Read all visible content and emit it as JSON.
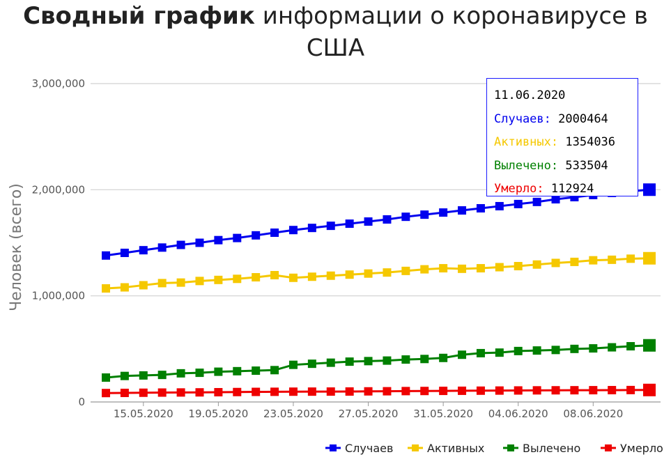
{
  "title": {
    "bold": "Сводный график",
    "rest": "информации о коронавирусе в США"
  },
  "chart_data": {
    "type": "line",
    "title": "Сводный график информации о коронавирусе в США",
    "xlabel": "",
    "ylabel": "Человек (всего)",
    "x": [
      "13.05.2020",
      "14.05.2020",
      "15.05.2020",
      "16.05.2020",
      "17.05.2020",
      "18.05.2020",
      "19.05.2020",
      "20.05.2020",
      "21.05.2020",
      "22.05.2020",
      "23.05.2020",
      "24.05.2020",
      "25.05.2020",
      "26.05.2020",
      "27.05.2020",
      "28.05.2020",
      "29.05.2020",
      "30.05.2020",
      "31.05.2020",
      "01.06.2020",
      "02.06.2020",
      "03.06.2020",
      "04.06.2020",
      "05.06.2020",
      "06.06.2020",
      "07.06.2020",
      "08.06.2020",
      "09.06.2020",
      "10.06.2020",
      "11.06.2020"
    ],
    "x_tick_labels": [
      "15.05.2020",
      "19.05.2020",
      "23.05.2020",
      "27.05.2020",
      "31.05.2020",
      "04.06.2020",
      "08.06.2020"
    ],
    "y_tick_labels": [
      "0",
      "1,000,000",
      "2,000,000",
      "3,000,000"
    ],
    "ylim": [
      0,
      3000000
    ],
    "grid": true,
    "legend_position": "bottom-right",
    "series": [
      {
        "name": "Случаев",
        "color": "#0000ee",
        "values": [
          1380000,
          1405000,
          1430000,
          1455000,
          1480000,
          1500000,
          1525000,
          1545000,
          1570000,
          1595000,
          1620000,
          1640000,
          1660000,
          1680000,
          1700000,
          1720000,
          1745000,
          1765000,
          1785000,
          1805000,
          1825000,
          1845000,
          1865000,
          1885000,
          1910000,
          1930000,
          1950000,
          1970000,
          1985000,
          2000464
        ]
      },
      {
        "name": "Активных",
        "color": "#f5c800",
        "values": [
          1070000,
          1080000,
          1100000,
          1120000,
          1125000,
          1140000,
          1150000,
          1160000,
          1175000,
          1195000,
          1170000,
          1180000,
          1190000,
          1200000,
          1210000,
          1220000,
          1235000,
          1250000,
          1260000,
          1255000,
          1260000,
          1270000,
          1280000,
          1295000,
          1310000,
          1320000,
          1335000,
          1340000,
          1350000,
          1354036
        ]
      },
      {
        "name": "Вылечено",
        "color": "#008000",
        "values": [
          230000,
          245000,
          250000,
          255000,
          270000,
          275000,
          285000,
          290000,
          295000,
          300000,
          350000,
          360000,
          370000,
          380000,
          385000,
          390000,
          400000,
          405000,
          415000,
          445000,
          460000,
          465000,
          480000,
          485000,
          490000,
          500000,
          505000,
          515000,
          525000,
          533504
        ]
      },
      {
        "name": "Умерло",
        "color": "#ee0000",
        "values": [
          84000,
          85500,
          87000,
          88500,
          89500,
          90500,
          92000,
          93500,
          95000,
          96000,
          97000,
          97500,
          98000,
          98500,
          100000,
          101000,
          102500,
          103500,
          104500,
          105500,
          106500,
          107500,
          108500,
          109500,
          110000,
          110500,
          111000,
          111500,
          112300,
          112924
        ]
      }
    ]
  },
  "tooltip": {
    "date": "11.06.2020",
    "rows": [
      {
        "label": "Случаев:",
        "value": "2000464"
      },
      {
        "label": "Активных:",
        "value": "1354036"
      },
      {
        "label": "Вылечено:",
        "value": "533504"
      },
      {
        "label": "Умерло:",
        "value": "112924"
      }
    ]
  }
}
